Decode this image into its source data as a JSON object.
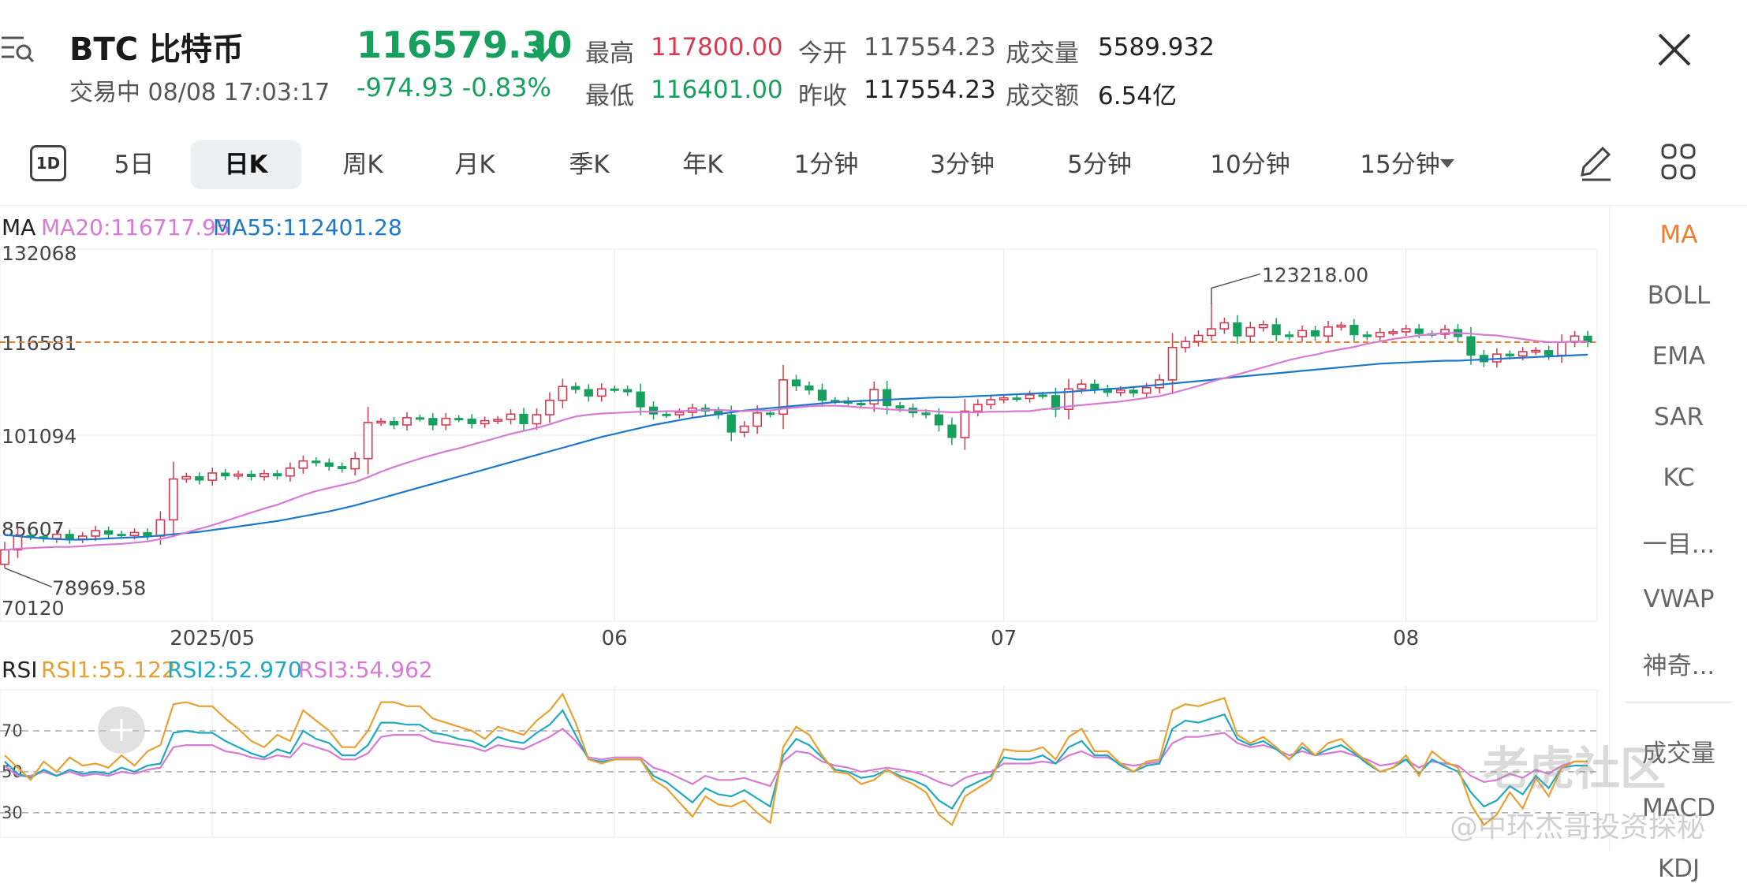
{
  "header": {
    "symbol": "BTC  比特币",
    "status": "交易中 08/08 17:03:17",
    "price": "116579.30",
    "change": "-974.93 -0.83%",
    "stats": [
      {
        "label": "最高",
        "value": "117800.00",
        "color": "#d63a52"
      },
      {
        "label": "最低",
        "value": "116401.00",
        "color": "#17a05d"
      },
      {
        "label": "今开",
        "value": "117554.23",
        "color": "#444444"
      },
      {
        "label": "昨收",
        "value": "117554.23",
        "color": "#222222"
      },
      {
        "label": "成交量",
        "value": "5589.932",
        "color": "#222222"
      },
      {
        "label": "成交额",
        "value": "6.54亿",
        "color": "#222222"
      }
    ]
  },
  "tabs": [
    "5日",
    "日K",
    "周K",
    "月K",
    "季K",
    "年K",
    "1分钟",
    "3分钟",
    "5分钟",
    "10分钟",
    "15分钟"
  ],
  "tab_icon_label": "1D",
  "active_tab": "日K",
  "indicators": [
    "MA",
    "BOLL",
    "EMA",
    "SAR",
    "KC",
    "一目...",
    "VWAP",
    "神奇...",
    "成交量",
    "MACD",
    "KDJ"
  ],
  "active_indicator": "MA",
  "watermark": {
    "brand": "老虎社区",
    "author": "@中环杰哥投资探秘"
  },
  "colors": {
    "up": "#d63a52",
    "down": "#17a05d",
    "ma20": "#d87ad5",
    "ma55": "#1e78c8",
    "rsi1": "#e8a030",
    "rsi2": "#20a8c0",
    "rsi3": "#d87ad5",
    "current": "#f07d2a"
  },
  "chart_data": [
    {
      "type": "candlestick",
      "legend": {
        "title": "MA",
        "ma20": "MA20:116717.95",
        "ma55": "MA55:112401.28"
      },
      "y_ticks": [
        "132068",
        "116581",
        "101094",
        "85607",
        "70120"
      ],
      "ylim": [
        70120,
        132068
      ],
      "x_ticks": [
        {
          "label": "2025/05",
          "index": 16
        },
        {
          "label": "06",
          "index": 47
        },
        {
          "label": "07",
          "index": 77
        },
        {
          "label": "08",
          "index": 108
        }
      ],
      "high_label": "123218.00",
      "low_label": "78969.58",
      "current_price": 116581,
      "closes": [
        82000,
        84400,
        84200,
        83900,
        84600,
        83800,
        84300,
        85200,
        84600,
        84400,
        84900,
        84300,
        87000,
        93800,
        94200,
        93600,
        94800,
        94300,
        94600,
        94200,
        94700,
        94300,
        95600,
        96800,
        96500,
        95900,
        95500,
        97200,
        103200,
        103400,
        102800,
        104000,
        103900,
        102800,
        103900,
        103800,
        103000,
        103500,
        103700,
        104600,
        103000,
        104500,
        106900,
        109200,
        108700,
        107600,
        108800,
        108700,
        108300,
        105800,
        104600,
        104500,
        104900,
        105600,
        105100,
        104500,
        101600,
        102600,
        104800,
        104600,
        110300,
        109300,
        108600,
        106900,
        106800,
        106400,
        106300,
        108700,
        106000,
        105600,
        104800,
        104500,
        102800,
        100700,
        105100,
        106200,
        107000,
        107300,
        107200,
        107800,
        107700,
        105400,
        108800,
        109600,
        108800,
        108200,
        108600,
        108100,
        109000,
        110300,
        115700,
        116700,
        117700,
        118800,
        119800,
        117600,
        119000,
        119500,
        117800,
        117500,
        118500,
        117600,
        119100,
        119400,
        117800,
        117500,
        118200,
        118300,
        118800,
        118000,
        117900,
        118700,
        117500,
        114400,
        113300,
        114600,
        114300,
        115000,
        115200,
        114400,
        116600,
        117600,
        116600
      ],
      "ma20": [
        82000,
        82200,
        82300,
        82400,
        82500,
        82500,
        82600,
        82800,
        82900,
        83000,
        83200,
        83400,
        83800,
        84300,
        84900,
        85500,
        86100,
        86800,
        87500,
        88200,
        88900,
        89500,
        90300,
        91100,
        91800,
        92300,
        92800,
        93300,
        94100,
        95000,
        95800,
        96500,
        97200,
        97800,
        98400,
        98900,
        99500,
        100100,
        100700,
        101300,
        101800,
        102300,
        102900,
        103600,
        104200,
        104500,
        104700,
        104800,
        104900,
        105000,
        105000,
        105100,
        105100,
        105200,
        105300,
        105300,
        105200,
        105100,
        105200,
        105200,
        105500,
        105700,
        105900,
        106000,
        106000,
        105900,
        105700,
        105600,
        105400,
        105300,
        105200,
        105200,
        105000,
        104900,
        104900,
        104900,
        105000,
        105000,
        105100,
        105100,
        105400,
        105600,
        105900,
        106100,
        106300,
        106500,
        106700,
        107000,
        107300,
        107600,
        108100,
        108700,
        109300,
        110000,
        110600,
        111200,
        111800,
        112400,
        113000,
        113600,
        114100,
        114500,
        115000,
        115400,
        115800,
        116300,
        116700,
        117100,
        117400,
        117700,
        117900,
        118100,
        118100,
        118000,
        117800,
        117700,
        117400,
        117100,
        116800,
        116600,
        116600,
        116700,
        116700
      ],
      "ma55": [
        84500,
        84300,
        84100,
        83900,
        83800,
        83700,
        83700,
        83800,
        83900,
        84000,
        84100,
        84200,
        84400,
        84600,
        84800,
        85000,
        85300,
        85600,
        85900,
        86200,
        86500,
        86800,
        87200,
        87600,
        88000,
        88400,
        88900,
        89400,
        90000,
        90600,
        91200,
        91800,
        92400,
        93000,
        93600,
        94200,
        94800,
        95400,
        96000,
        96600,
        97200,
        97800,
        98400,
        99000,
        99600,
        100200,
        100800,
        101300,
        101800,
        102300,
        102800,
        103200,
        103600,
        104000,
        104300,
        104600,
        104900,
        105200,
        105400,
        105600,
        105800,
        106000,
        106200,
        106400,
        106600,
        106700,
        106800,
        106900,
        107000,
        107100,
        107200,
        107300,
        107400,
        107400,
        107500,
        107600,
        107700,
        107800,
        107900,
        108000,
        108100,
        108200,
        108300,
        108500,
        108600,
        108800,
        108900,
        109100,
        109300,
        109500,
        109700,
        109900,
        110100,
        110300,
        110600,
        110800,
        111000,
        111200,
        111400,
        111600,
        111800,
        112000,
        112200,
        112400,
        112600,
        112800,
        113000,
        113100,
        113200,
        113300,
        113400,
        113500,
        113500,
        113600,
        113700,
        113800,
        113900,
        114000,
        114100,
        114200,
        114300,
        114400,
        114500
      ]
    },
    {
      "type": "line",
      "legend": {
        "title": "RSI",
        "rsi1": "RSI1:55.122",
        "rsi2": "RSI2:52.970",
        "rsi3": "RSI3:54.962"
      },
      "y_ticks": [
        "70",
        "50",
        "30"
      ],
      "ylim": [
        18,
        90
      ],
      "rsi1": [
        58,
        52,
        46,
        55,
        50,
        57,
        53,
        54,
        52,
        58,
        53,
        60,
        63,
        83,
        84,
        82,
        82,
        76,
        71,
        65,
        62,
        68,
        65,
        80,
        75,
        70,
        62,
        62,
        70,
        84,
        84,
        82,
        82,
        76,
        74,
        72,
        70,
        66,
        72,
        70,
        68,
        75,
        80,
        88,
        74,
        56,
        54,
        56,
        56,
        56,
        46,
        42,
        35,
        28,
        38,
        34,
        33,
        36,
        30,
        25,
        62,
        72,
        68,
        58,
        50,
        49,
        44,
        46,
        51,
        47,
        44,
        40,
        29,
        24,
        38,
        42,
        46,
        61,
        60,
        60,
        62,
        56,
        67,
        71,
        60,
        60,
        54,
        50,
        55,
        56,
        80,
        83,
        82,
        84,
        86,
        68,
        64,
        67,
        62,
        56,
        64,
        58,
        64,
        66,
        60,
        55,
        50,
        52,
        58,
        48,
        60,
        55,
        52,
        34,
        24,
        29,
        40,
        32,
        47,
        38,
        52,
        55,
        55
      ],
      "rsi2": [
        55,
        49,
        47,
        51,
        48,
        51,
        49,
        50,
        49,
        52,
        50,
        53,
        54,
        69,
        70,
        69,
        69,
        65,
        62,
        59,
        57,
        61,
        59,
        70,
        66,
        64,
        58,
        58,
        63,
        74,
        74,
        73,
        73,
        69,
        68,
        66,
        65,
        62,
        67,
        65,
        64,
        69,
        73,
        80,
        68,
        56,
        55,
        56,
        56,
        56,
        48,
        45,
        40,
        35,
        42,
        39,
        38,
        41,
        37,
        33,
        58,
        66,
        63,
        57,
        51,
        50,
        47,
        48,
        51,
        48,
        46,
        43,
        36,
        32,
        42,
        45,
        48,
        57,
        56,
        56,
        58,
        54,
        62,
        65,
        58,
        58,
        53,
        50,
        53,
        54,
        71,
        75,
        74,
        76,
        78,
        66,
        63,
        65,
        61,
        56,
        62,
        58,
        61,
        63,
        59,
        54,
        50,
        52,
        56,
        49,
        56,
        53,
        50,
        40,
        33,
        36,
        43,
        39,
        48,
        42,
        52,
        53,
        53
      ],
      "rsi3": [
        53,
        48,
        48,
        50,
        48,
        50,
        48,
        49,
        48,
        50,
        49,
        51,
        52,
        62,
        63,
        63,
        63,
        60,
        59,
        57,
        56,
        58,
        57,
        64,
        62,
        60,
        56,
        56,
        59,
        67,
        68,
        68,
        68,
        65,
        64,
        63,
        62,
        60,
        63,
        62,
        61,
        64,
        67,
        71,
        65,
        57,
        56,
        57,
        57,
        57,
        52,
        50,
        47,
        44,
        48,
        46,
        46,
        47,
        45,
        43,
        55,
        60,
        59,
        55,
        53,
        52,
        50,
        51,
        52,
        51,
        50,
        48,
        45,
        43,
        47,
        49,
        50,
        54,
        54,
        54,
        55,
        54,
        58,
        60,
        57,
        57,
        54,
        53,
        54,
        55,
        64,
        67,
        67,
        68,
        69,
        64,
        62,
        63,
        61,
        58,
        60,
        58,
        59,
        60,
        58,
        56,
        53,
        54,
        56,
        52,
        55,
        54,
        53,
        48,
        45,
        46,
        49,
        47,
        51,
        49,
        53,
        55,
        55
      ]
    }
  ]
}
